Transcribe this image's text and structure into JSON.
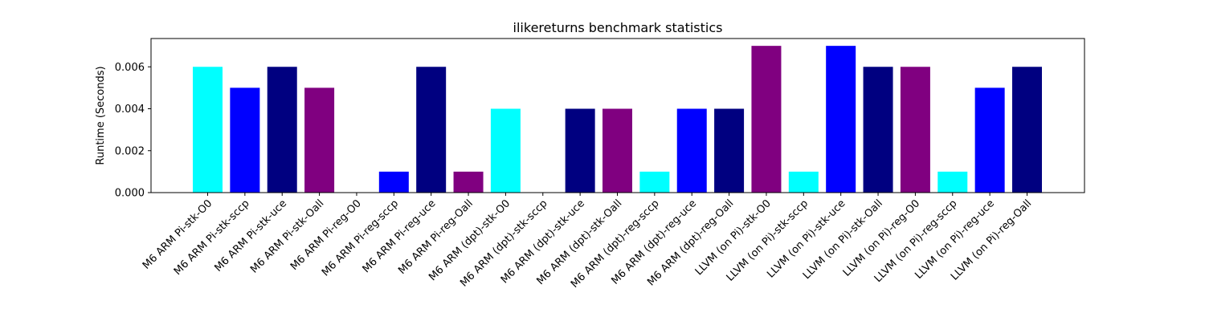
{
  "chart_data": {
    "type": "bar",
    "title": "ilikereturns benchmark statistics",
    "xlabel": "",
    "ylabel": "Runtime (Seconds)",
    "ylim": [
      0,
      0.00735
    ],
    "yticks": [
      "0.000",
      "0.002",
      "0.004",
      "0.006"
    ],
    "ytick_values": [
      0,
      0.002,
      0.004,
      0.006
    ],
    "grid": false,
    "categories": [
      "M6 ARM Pi-stk-O0",
      "M6 ARM Pi-stk-sccp",
      "M6 ARM Pi-stk-uce",
      "M6 ARM Pi-stk-Oall",
      "M6 ARM Pi-reg-O0",
      "M6 ARM Pi-reg-sccp",
      "M6 ARM Pi-reg-uce",
      "M6 ARM Pi-reg-Oall",
      "M6 ARM (dpt)-stk-O0",
      "M6 ARM (dpt)-stk-sccp",
      "M6 ARM (dpt)-stk-uce",
      "M6 ARM (dpt)-stk-Oall",
      "M6 ARM (dpt)-reg-sccp",
      "M6 ARM (dpt)-reg-uce",
      "M6 ARM (dpt)-reg-Oall",
      "LLVM (on Pi)-stk-O0",
      "LLVM (on Pi)-stk-sccp",
      "LLVM (on Pi)-stk-uce",
      "LLVM (on Pi)-stk-Oall",
      "LLVM (on Pi)-reg-O0",
      "LLVM (on Pi)-reg-sccp",
      "LLVM (on Pi)-reg-uce",
      "LLVM (on Pi)-reg-Oall"
    ],
    "values": [
      0.006,
      0.005,
      0.006,
      0.005,
      0.0,
      0.001,
      0.006,
      0.001,
      0.004,
      0.0,
      0.004,
      0.004,
      0.001,
      0.004,
      0.004,
      0.007,
      0.001,
      0.007,
      0.006,
      0.006,
      0.001,
      0.005,
      0.006
    ],
    "colors": [
      "#00ffff",
      "#0000ff",
      "#000080",
      "#800080",
      "#00ffff",
      "#0000ff",
      "#000080",
      "#800080",
      "#00ffff",
      "#0000ff",
      "#000080",
      "#800080",
      "#00ffff",
      "#0000ff",
      "#000080",
      "#800080",
      "#00ffff",
      "#0000ff",
      "#000080",
      "#800080",
      "#00ffff",
      "#0000ff",
      "#000080"
    ]
  }
}
